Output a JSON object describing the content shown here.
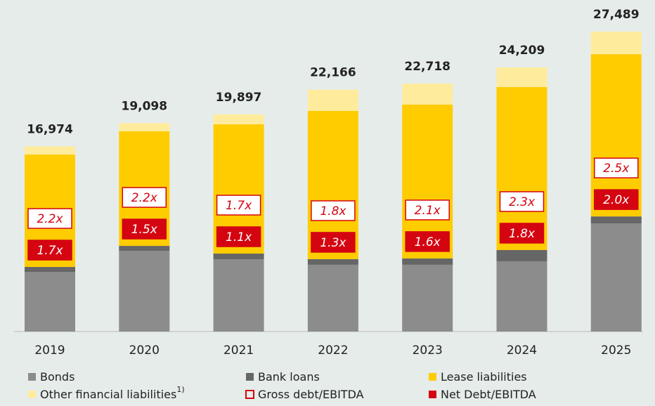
{
  "chart_data": {
    "type": "stacked_bar",
    "categories": [
      "2019",
      "2020",
      "2021",
      "2022",
      "2023",
      "2024",
      "2025"
    ],
    "series": [
      {
        "name": "Bonds",
        "color": "#8c8c8c",
        "values": [
          5470,
          7400,
          6630,
          6120,
          6120,
          6440,
          9910
        ]
      },
      {
        "name": "Bank loans",
        "color": "#666666",
        "values": [
          450,
          450,
          515,
          515,
          580,
          1030,
          640
        ]
      },
      {
        "name": "Lease liabilities",
        "color": "#ffcc00",
        "values": [
          10300,
          10500,
          11850,
          13580,
          14100,
          14940,
          14870
        ]
      },
      {
        "name": "Other financial liabilities",
        "footnote": "1)",
        "color": "#ffeb9c",
        "values": [
          754,
          748,
          902,
          1951,
          1918,
          1799,
          2069
        ]
      }
    ],
    "totals": {
      "values": [
        16974,
        19098,
        19897,
        22166,
        22718,
        24209,
        27489
      ],
      "value_labels": [
        "16,974",
        "19,098",
        "19,897",
        "22,166",
        "22,718",
        "24,209",
        "27,489"
      ]
    },
    "ratios": [
      {
        "name": "Gross debt/EBITDA",
        "color": "#d40511",
        "style": "outline",
        "values": [
          2.2,
          2.2,
          1.7,
          1.8,
          2.1,
          2.3,
          2.5
        ],
        "value_labels": [
          "2.2x",
          "2.2x",
          "1.7x",
          "1.8x",
          "2.1x",
          "2.3x",
          "2.5x"
        ]
      },
      {
        "name": "Net Debt/EBITDA",
        "color": "#d40511",
        "style": "filled",
        "values": [
          1.7,
          1.5,
          1.1,
          1.3,
          1.6,
          1.8,
          2.0
        ],
        "value_labels": [
          "1.7x",
          "1.5x",
          "1.1x",
          "1.3x",
          "1.6x",
          "1.8x",
          "2.0x"
        ]
      }
    ]
  }
}
